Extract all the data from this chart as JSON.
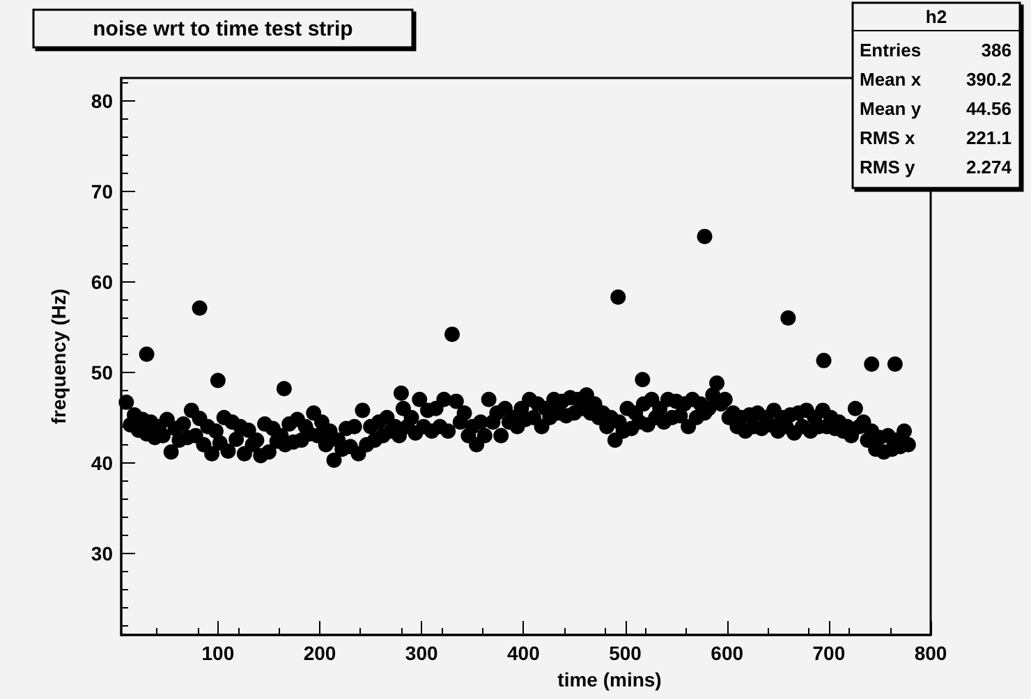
{
  "chart_data": {
    "type": "scatter",
    "title": "noise wrt to time test strip",
    "xlabel": "time (mins)",
    "ylabel": "frequency (Hz)",
    "annotations": [
      "h2",
      "Entries 386",
      "Mean x 390.2",
      "Mean y 44.56",
      "RMS x 221.1",
      "RMS y 2.274"
    ],
    "xlim": [
      5,
      800
    ],
    "xticks": [
      100,
      200,
      300,
      400,
      500,
      600,
      700,
      800
    ],
    "ylim": [
      21,
      82.5
    ],
    "yticks": [
      30,
      40,
      50,
      60,
      70,
      80
    ],
    "grid": false,
    "marker": "circle",
    "series": [
      {
        "color": "#000000",
        "x": [
          10,
          14,
          18,
          22,
          26,
          30,
          34,
          38,
          42,
          46,
          50,
          54,
          58,
          62,
          66,
          70,
          74,
          78,
          82,
          86,
          90,
          94,
          98,
          102,
          106,
          110,
          114,
          118,
          122,
          126,
          130,
          134,
          138,
          142,
          146,
          150,
          154,
          158,
          162,
          166,
          170,
          174,
          178,
          182,
          186,
          190,
          194,
          198,
          202,
          206,
          210,
          214,
          218,
          222,
          226,
          230,
          234,
          238,
          242,
          246,
          250,
          254,
          258,
          262,
          266,
          270,
          274,
          278,
          282,
          286,
          290,
          294,
          298,
          302,
          306,
          310,
          314,
          318,
          322,
          326,
          334,
          338,
          342,
          346,
          350,
          354,
          358,
          362,
          366,
          370,
          374,
          378,
          382,
          386,
          390,
          394,
          398,
          402,
          406,
          410,
          414,
          418,
          422,
          426,
          430,
          434,
          438,
          442,
          446,
          450,
          454,
          458,
          462,
          466,
          470,
          474,
          478,
          482,
          486,
          490,
          494,
          498,
          502,
          506,
          510,
          514,
          518,
          522,
          526,
          530,
          534,
          538,
          542,
          546,
          550,
          554,
          558,
          562,
          566,
          570,
          574,
          578,
          582,
          586,
          590,
          594,
          598,
          602,
          606,
          610,
          614,
          618,
          622,
          626,
          630,
          634,
          638,
          642,
          646,
          650,
          654,
          658,
          662,
          666,
          670,
          674,
          678,
          682,
          686,
          690,
          694,
          698,
          702,
          706,
          710,
          714,
          718,
          722,
          726,
          730,
          734,
          738,
          742,
          746,
          750,
          754,
          758,
          762,
          766,
          770,
          774,
          778,
          30,
          82,
          100,
          165,
          280,
          330,
          493,
          517,
          578,
          660,
          695,
          742,
          765
        ],
        "values": [
          46.7,
          44.2,
          45.3,
          43.6,
          44.8,
          43.2,
          44.5,
          42.8,
          44.0,
          43.0,
          44.8,
          41.2,
          43.8,
          42.5,
          44.3,
          42.8,
          45.8,
          43.0,
          44.9,
          42.0,
          44.0,
          41.0,
          43.5,
          42.2,
          45.0,
          41.3,
          44.5,
          42.6,
          44.0,
          41.0,
          43.6,
          42.0,
          42.5,
          40.8,
          44.3,
          41.2,
          43.8,
          42.4,
          43.0,
          42.0,
          44.3,
          42.3,
          44.8,
          42.5,
          44.0,
          43.2,
          45.5,
          43.0,
          44.5,
          42.0,
          43.5,
          40.3,
          42.5,
          41.5,
          43.8,
          41.8,
          44.0,
          41.0,
          45.8,
          42.0,
          44.0,
          42.5,
          44.5,
          43.0,
          45.0,
          43.5,
          44.0,
          43.0,
          46.0,
          44.0,
          45.0,
          43.3,
          47.0,
          44.0,
          45.8,
          43.5,
          46.0,
          44.0,
          47.0,
          43.5,
          46.8,
          44.5,
          45.5,
          43.0,
          44.0,
          42.0,
          44.5,
          43.0,
          47.0,
          44.5,
          45.5,
          43.0,
          46.0,
          44.5,
          45.0,
          44.0,
          46.0,
          44.8,
          47.0,
          45.0,
          46.5,
          44.0,
          46.0,
          45.0,
          47.0,
          45.5,
          46.8,
          45.2,
          47.2,
          45.5,
          47.0,
          46.0,
          47.5,
          45.5,
          46.5,
          45.0,
          45.5,
          44.0,
          45.0,
          42.5,
          44.5,
          43.5,
          46.0,
          43.8,
          45.5,
          44.5,
          46.5,
          44.2,
          47.0,
          45.0,
          46.0,
          44.5,
          47.0,
          45.0,
          46.8,
          45.2,
          46.5,
          44.0,
          47.0,
          45.0,
          46.5,
          45.5,
          46.0,
          47.5,
          48.8,
          46.5,
          47.0,
          45.0,
          45.5,
          44.0,
          45.0,
          43.5,
          45.3,
          44.0,
          45.5,
          43.8,
          45.0,
          44.2,
          45.8,
          43.5,
          45.0,
          44.0,
          45.3,
          43.3,
          45.5,
          44.0,
          45.8,
          43.5,
          45.0,
          44.0,
          45.8,
          44.0,
          45.0,
          43.8,
          44.5,
          43.5,
          44.0,
          43.0,
          46.0,
          44.0,
          44.5,
          42.5,
          43.5,
          41.5,
          42.8,
          41.2,
          43.0,
          41.5,
          42.5,
          41.8,
          43.5,
          42.0,
          52.0,
          57.1,
          49.1,
          48.2,
          47.7,
          54.2,
          58.3,
          49.2,
          65.0,
          56.0,
          51.3,
          50.9,
          50.9
        ]
      }
    ]
  }
}
